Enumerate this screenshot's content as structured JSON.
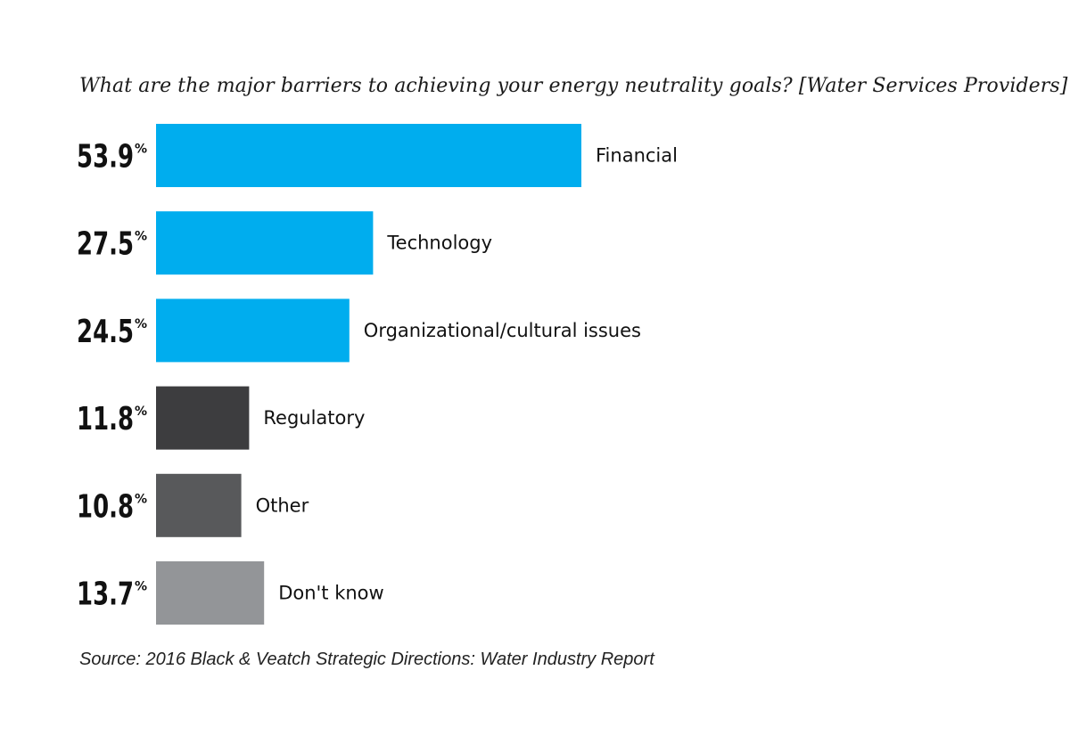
{
  "chart_data": {
    "type": "bar",
    "orientation": "horizontal",
    "title": "What are the major barriers to achieving your energy neutrality goals? [Water Services Providers]",
    "categories": [
      "Financial",
      "Technology",
      "Organizational/cultural issues",
      "Regulatory",
      "Other",
      "Don't know"
    ],
    "values": [
      53.9,
      27.5,
      24.5,
      11.8,
      10.8,
      13.7
    ],
    "value_labels": [
      "53.9",
      "27.5",
      "24.5",
      "11.8",
      "10.8",
      "13.7"
    ],
    "value_suffix": "%",
    "bar_colors": [
      "#00adee",
      "#00adee",
      "#00adee",
      "#3d3d3f",
      "#58595b",
      "#939598"
    ],
    "xlim": [
      0,
      100
    ],
    "grid": false,
    "legend": "none"
  },
  "source": "Source: 2016 Black & Veatch Strategic Directions: Water Industry Report"
}
